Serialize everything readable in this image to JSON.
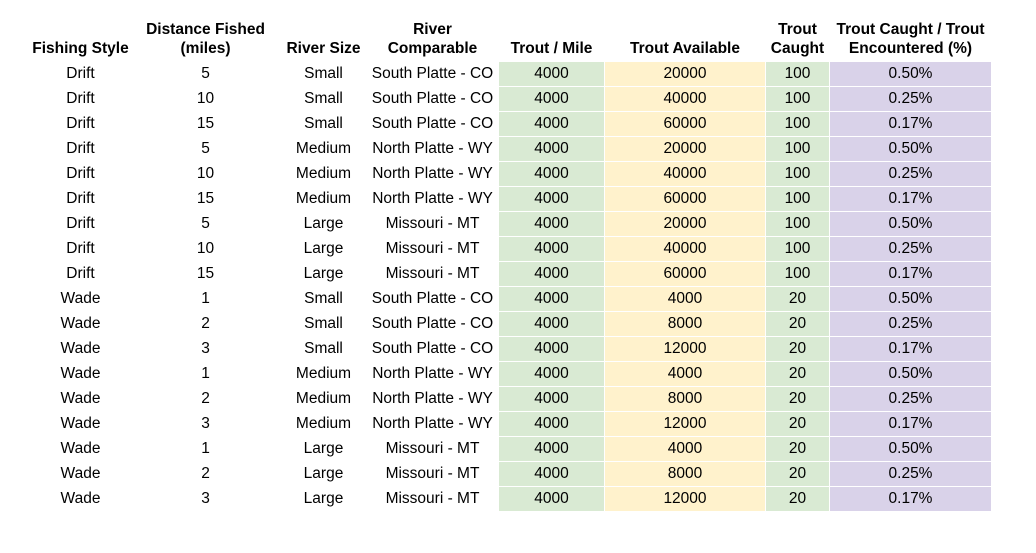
{
  "columns": [
    "Fishing Style",
    "Distance Fished (miles)",
    "River Size",
    "River Comparable",
    "Trout / Mile",
    "Trout Available",
    "Trout Caught",
    "Trout Caught / Trout Encountered (%)"
  ],
  "column_colors": [
    "#ffffff",
    "#ffffff",
    "#ffffff",
    "#ffffff",
    "#d9ead3",
    "#fff2cc",
    "#d9ead3",
    "#d9d2e9"
  ],
  "rows": [
    [
      "Drift",
      "5",
      "Small",
      "South Platte - CO",
      "4000",
      "20000",
      "100",
      "0.50%"
    ],
    [
      "Drift",
      "10",
      "Small",
      "South Platte - CO",
      "4000",
      "40000",
      "100",
      "0.25%"
    ],
    [
      "Drift",
      "15",
      "Small",
      "South Platte - CO",
      "4000",
      "60000",
      "100",
      "0.17%"
    ],
    [
      "Drift",
      "5",
      "Medium",
      "North Platte - WY",
      "4000",
      "20000",
      "100",
      "0.50%"
    ],
    [
      "Drift",
      "10",
      "Medium",
      "North Platte - WY",
      "4000",
      "40000",
      "100",
      "0.25%"
    ],
    [
      "Drift",
      "15",
      "Medium",
      "North Platte - WY",
      "4000",
      "60000",
      "100",
      "0.17%"
    ],
    [
      "Drift",
      "5",
      "Large",
      "Missouri - MT",
      "4000",
      "20000",
      "100",
      "0.50%"
    ],
    [
      "Drift",
      "10",
      "Large",
      "Missouri - MT",
      "4000",
      "40000",
      "100",
      "0.25%"
    ],
    [
      "Drift",
      "15",
      "Large",
      "Missouri - MT",
      "4000",
      "60000",
      "100",
      "0.17%"
    ],
    [
      "Wade",
      "1",
      "Small",
      "South Platte - CO",
      "4000",
      "4000",
      "20",
      "0.50%"
    ],
    [
      "Wade",
      "2",
      "Small",
      "South Platte - CO",
      "4000",
      "8000",
      "20",
      "0.25%"
    ],
    [
      "Wade",
      "3",
      "Small",
      "South Platte - CO",
      "4000",
      "12000",
      "20",
      "0.17%"
    ],
    [
      "Wade",
      "1",
      "Medium",
      "North Platte - WY",
      "4000",
      "4000",
      "20",
      "0.50%"
    ],
    [
      "Wade",
      "2",
      "Medium",
      "North Platte - WY",
      "4000",
      "8000",
      "20",
      "0.25%"
    ],
    [
      "Wade",
      "3",
      "Medium",
      "North Platte - WY",
      "4000",
      "12000",
      "20",
      "0.17%"
    ],
    [
      "Wade",
      "1",
      "Large",
      "Missouri - MT",
      "4000",
      "4000",
      "20",
      "0.50%"
    ],
    [
      "Wade",
      "2",
      "Large",
      "Missouri - MT",
      "4000",
      "8000",
      "20",
      "0.25%"
    ],
    [
      "Wade",
      "3",
      "Large",
      "Missouri - MT",
      "4000",
      "12000",
      "20",
      "0.17%"
    ]
  ]
}
